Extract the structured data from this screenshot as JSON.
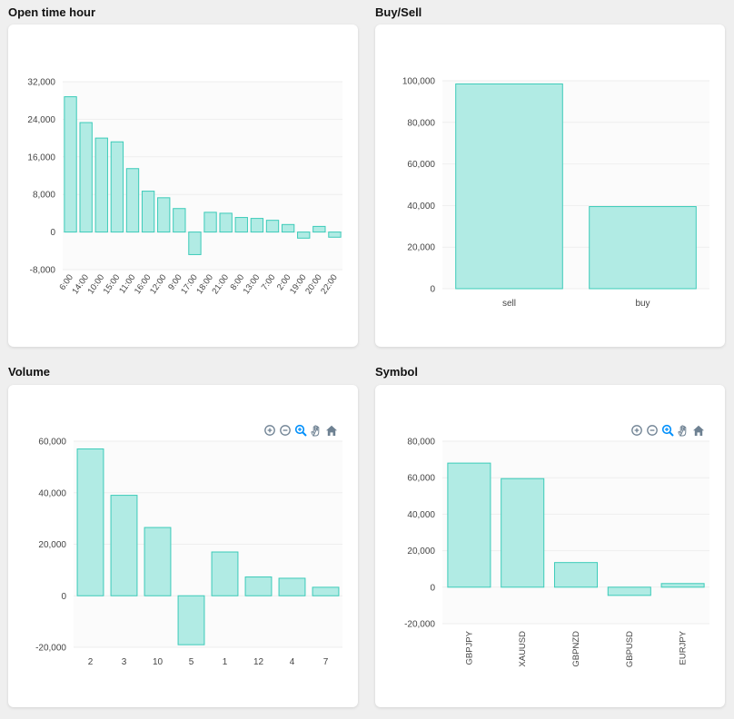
{
  "panels": [
    {
      "title": "Open time hour"
    },
    {
      "title": "Buy/Sell"
    },
    {
      "title": "Volume"
    },
    {
      "title": "Symbol"
    }
  ],
  "toolbar_icons": [
    "zoom-in-icon",
    "zoom-out-icon",
    "zoom-select-icon",
    "pan-icon",
    "home-icon"
  ],
  "colors": {
    "bar_fill": "#b1ebe4",
    "bar_stroke": "#3ccbb9",
    "grid": "#eeeeee",
    "plot_bg": "#fbfbfb",
    "axis_text": "#444444",
    "toolbar_icon": "#6e8192",
    "toolbar_active": "#008ffb"
  },
  "chart_data": [
    {
      "type": "bar",
      "title": "",
      "categories": [
        "6:00",
        "14:00",
        "10:00",
        "15:00",
        "11:00",
        "16:00",
        "12:00",
        "9:00",
        "17:00",
        "18:00",
        "21:00",
        "8:00",
        "13:00",
        "7:00",
        "2:00",
        "19:00",
        "20:00",
        "22:00"
      ],
      "values": [
        28800,
        23300,
        20000,
        19200,
        13500,
        8700,
        7300,
        5000,
        -4800,
        4200,
        4000,
        3100,
        2900,
        2500,
        1600,
        -1300,
        1200,
        -1100
      ],
      "yticks": [
        "32,000",
        "24,000",
        "16,000",
        "8,000",
        "0",
        "-8,000"
      ],
      "ylim": [
        -8000,
        32000
      ],
      "x_rotated": true,
      "grid": true
    },
    {
      "type": "bar",
      "title": "",
      "categories": [
        "sell",
        "buy"
      ],
      "values": [
        98500,
        39500
      ],
      "yticks": [
        "100,000",
        "80,000",
        "60,000",
        "40,000",
        "20,000",
        "0"
      ],
      "ylim": [
        0,
        100000
      ],
      "x_rotated": false,
      "grid": true
    },
    {
      "type": "bar",
      "title": "",
      "categories": [
        "2",
        "3",
        "10",
        "5",
        "1",
        "12",
        "4",
        "7"
      ],
      "values": [
        57000,
        39000,
        26500,
        -19000,
        17000,
        7300,
        6800,
        3300
      ],
      "yticks": [
        "60,000",
        "40,000",
        "20,000",
        "0",
        "-20,000"
      ],
      "ylim": [
        -20000,
        60000
      ],
      "x_rotated": false,
      "grid": true
    },
    {
      "type": "bar",
      "title": "",
      "categories": [
        "GBPJPY",
        "XAUUSD",
        "GBPNZD",
        "GBPUSD",
        "EURJPY"
      ],
      "values": [
        68000,
        59500,
        13500,
        -4500,
        2000
      ],
      "yticks": [
        "80,000",
        "60,000",
        "40,000",
        "20,000",
        "0",
        "-20,000"
      ],
      "ylim": [
        -20000,
        80000
      ],
      "x_rotated": true,
      "grid": true
    }
  ]
}
